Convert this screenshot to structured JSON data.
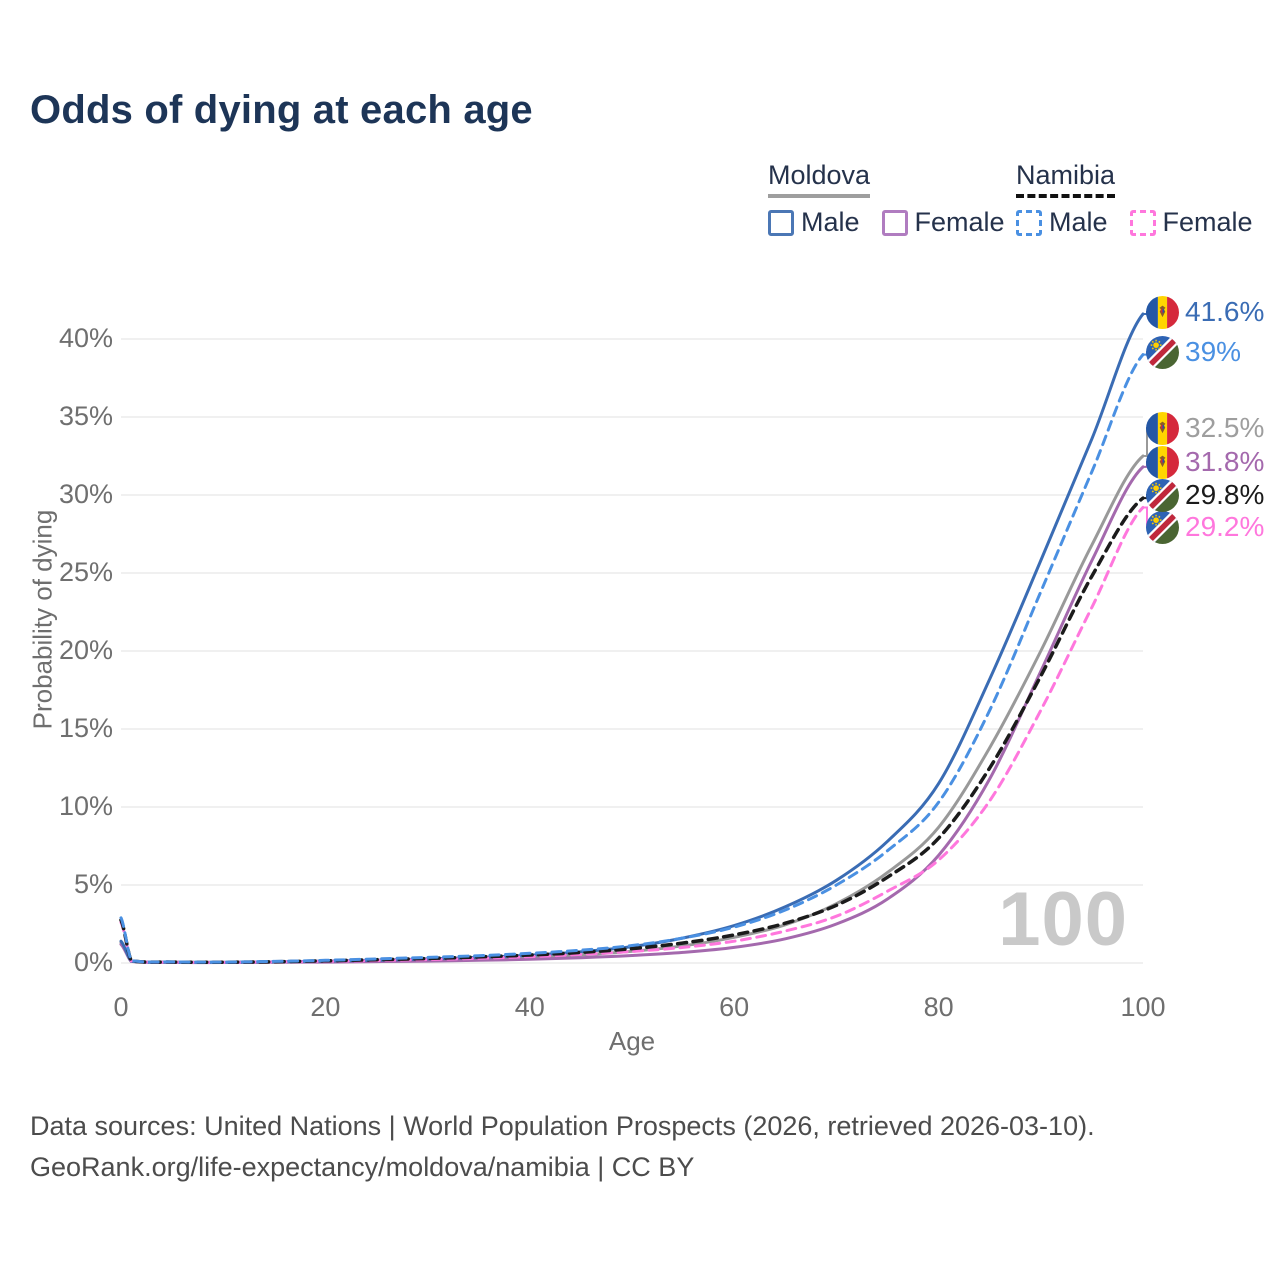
{
  "header": {
    "title": "Odds of dying at each age"
  },
  "legend": {
    "groups": [
      {
        "id": "moldova",
        "label": "Moldova",
        "underline_style": "solid",
        "underline_color": "#9e9e9e",
        "items": [
          {
            "label": "Male",
            "swatch_color": "#4b77b5",
            "swatch_style": "solid"
          },
          {
            "label": "Female",
            "swatch_color": "#b07cc0",
            "swatch_style": "solid"
          }
        ]
      },
      {
        "id": "namibia",
        "label": "Namibia",
        "underline_style": "dashed",
        "underline_color": "#111111",
        "items": [
          {
            "label": "Male",
            "swatch_color": "#4a90e2",
            "swatch_style": "dashed"
          },
          {
            "label": "Female",
            "swatch_color": "#ff77dd",
            "swatch_style": "dashed"
          }
        ]
      }
    ]
  },
  "watermark": {
    "age": "100"
  },
  "footer": {
    "line1": "Data sources: United Nations | World Population Prospects (2026, retrieved 2026-03-10).",
    "line2": "GeoRank.org/life-expectancy/moldova/namibia | CC BY"
  },
  "colors": {
    "title": "#1d3557",
    "axis_text": "#6f6f6f",
    "grid": "#ececec",
    "watermark": "#c9c9c9",
    "footer_text": "#4c4c4c",
    "moldova_male": "#3a6cb4",
    "moldova_female": "#a469ad",
    "moldova_both": "#999999",
    "namibia_male": "#4a90e2",
    "namibia_female": "#ff77dd",
    "namibia_both": "#1b1b1b"
  },
  "chart_data": {
    "type": "line",
    "title": "Odds of dying at each age",
    "xlabel": "Age",
    "ylabel": "Probability of dying",
    "xlim": [
      0,
      100
    ],
    "ylim": [
      0,
      43
    ],
    "xtick_values": [
      0,
      20,
      40,
      60,
      80,
      100
    ],
    "xtick_labels": [
      "0",
      "20",
      "40",
      "60",
      "80",
      "100"
    ],
    "ytick_values": [
      0,
      5,
      10,
      15,
      20,
      25,
      30,
      35,
      40
    ],
    "ytick_labels": [
      "0%",
      "5%",
      "10%",
      "15%",
      "20%",
      "25%",
      "30%",
      "35%",
      "40%"
    ],
    "grid": "horizontal",
    "legend_position": "top-right",
    "age_cursor": "100",
    "ages": [
      0,
      1,
      5,
      10,
      15,
      20,
      25,
      30,
      35,
      40,
      45,
      50,
      55,
      60,
      65,
      70,
      75,
      80,
      85,
      90,
      95,
      100
    ],
    "series": [
      {
        "id": "moldova-both",
        "country": "Moldova",
        "sex": "Both",
        "flag": "moldova",
        "color": "#999999",
        "line_style": "solid",
        "values": [
          1.3,
          0.11,
          0.05,
          0.04,
          0.06,
          0.09,
          0.13,
          0.18,
          0.26,
          0.36,
          0.52,
          0.75,
          1.1,
          1.65,
          2.45,
          3.8,
          5.8,
          8.7,
          13.8,
          20.0,
          26.8,
          32.5
        ],
        "end_label": {
          "text": "32.5%",
          "color": "#9e9e9e",
          "row": 2
        }
      },
      {
        "id": "moldova-female",
        "country": "Moldova",
        "sex": "Female",
        "flag": "moldova",
        "color": "#a469ad",
        "line_style": "solid",
        "values": [
          1.2,
          0.1,
          0.04,
          0.03,
          0.05,
          0.06,
          0.09,
          0.12,
          0.17,
          0.24,
          0.34,
          0.48,
          0.68,
          1.0,
          1.55,
          2.5,
          4.1,
          6.9,
          11.8,
          18.7,
          25.8,
          31.8
        ],
        "end_label": {
          "text": "31.8%",
          "color": "#a469ad",
          "row": 3
        }
      },
      {
        "id": "moldova-male",
        "country": "Moldova",
        "sex": "Male",
        "flag": "moldova",
        "color": "#3a6cb4",
        "line_style": "solid",
        "values": [
          1.4,
          0.12,
          0.05,
          0.04,
          0.07,
          0.12,
          0.18,
          0.26,
          0.36,
          0.5,
          0.72,
          1.05,
          1.6,
          2.4,
          3.6,
          5.3,
          7.8,
          11.5,
          18.2,
          25.8,
          33.6,
          41.6
        ],
        "end_label": {
          "text": "41.6%",
          "color": "#3a6cb4",
          "row": 0
        }
      },
      {
        "id": "namibia-female",
        "country": "Namibia",
        "sex": "Female",
        "flag": "namibia",
        "color": "#ff77dd",
        "line_style": "dashed",
        "values": [
          2.6,
          0.14,
          0.05,
          0.04,
          0.07,
          0.11,
          0.16,
          0.22,
          0.3,
          0.41,
          0.55,
          0.74,
          1.0,
          1.4,
          2.05,
          3.0,
          4.6,
          6.6,
          10.4,
          16.2,
          22.8,
          29.2
        ],
        "end_label": {
          "text": "29.2%",
          "color": "#ff77dd",
          "row": 5
        }
      },
      {
        "id": "namibia-both",
        "country": "Namibia",
        "sex": "Both",
        "flag": "namibia",
        "color": "#1b1b1b",
        "line_style": "dashed",
        "values": [
          2.75,
          0.15,
          0.06,
          0.05,
          0.08,
          0.14,
          0.21,
          0.29,
          0.39,
          0.51,
          0.68,
          0.92,
          1.28,
          1.8,
          2.55,
          3.7,
          5.5,
          8.0,
          12.5,
          18.4,
          24.8,
          29.8
        ],
        "end_label": {
          "text": "29.8%",
          "color": "#1b1b1b",
          "row": 4
        }
      },
      {
        "id": "namibia-male",
        "country": "Namibia",
        "sex": "Male",
        "flag": "namibia",
        "color": "#4a90e2",
        "line_style": "dashed",
        "values": [
          2.9,
          0.16,
          0.07,
          0.06,
          0.1,
          0.17,
          0.26,
          0.36,
          0.47,
          0.62,
          0.82,
          1.12,
          1.6,
          2.3,
          3.4,
          5.0,
          7.2,
          10.3,
          16.2,
          23.8,
          31.5,
          39.0
        ],
        "end_label": {
          "text": "39%",
          "color": "#4a90e2",
          "row": 1
        }
      }
    ]
  }
}
